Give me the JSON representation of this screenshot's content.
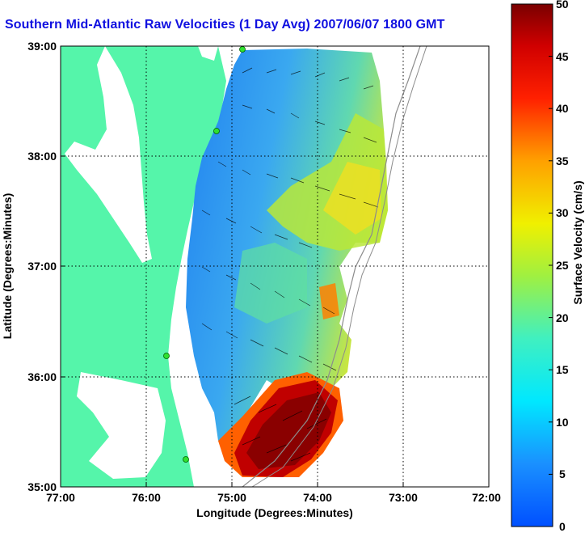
{
  "title": "Southern Mid-Atlantic Raw Velocities (1 Day Avg) 2007/06/07 1800 GMT",
  "map": {
    "xlabel": "Longitude (Degrees:Minutes)",
    "ylabel": "Latitude (Degrees:Minutes)",
    "x_ticks": [
      "77:00",
      "76:00",
      "75:00",
      "74:00",
      "73:00",
      "72:00"
    ],
    "y_ticks": [
      "39:00",
      "38:00",
      "37:00",
      "36:00",
      "35:00"
    ],
    "lon_range": [
      -77,
      -72
    ],
    "lat_range": [
      35,
      39
    ],
    "grid": "dotted",
    "land_color": "#55f5aa",
    "water_color": "#ffffff"
  },
  "colorbar": {
    "label": "Surface Velocity (cm/s)",
    "ticks": [
      "50",
      "45",
      "40",
      "35",
      "30",
      "25",
      "20",
      "15",
      "10",
      "5",
      "0"
    ],
    "range": [
      0,
      50
    ],
    "colormap": "jet"
  }
}
